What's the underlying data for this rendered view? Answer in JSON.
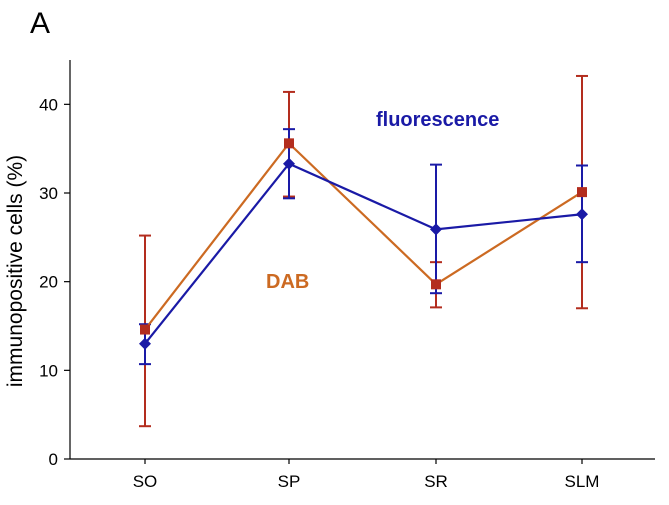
{
  "panel_label": "A",
  "chart_data": {
    "type": "line",
    "title": "",
    "xlabel": "",
    "ylabel": "immunopositive cells (%)",
    "categories": [
      "SO",
      "SP",
      "SR",
      "SLM"
    ],
    "ylim": [
      0,
      45
    ],
    "yticks": [
      0,
      10,
      20,
      30,
      40
    ],
    "grid": false,
    "legend": "inline labels",
    "series": [
      {
        "name": "fluorescence",
        "color": "#1a1aa6",
        "marker": "diamond",
        "values": [
          13.0,
          33.3,
          25.9,
          27.6
        ],
        "error_low": [
          10.7,
          29.4,
          18.7,
          22.2
        ],
        "error_high": [
          15.2,
          37.2,
          33.2,
          33.1
        ]
      },
      {
        "name": "DAB",
        "color": "#cc6a22",
        "error_color": "#b32d1e",
        "marker": "square",
        "values": [
          14.6,
          35.6,
          19.7,
          30.1
        ],
        "error_low": [
          3.7,
          29.6,
          17.1,
          17.0
        ],
        "error_high": [
          25.2,
          41.4,
          22.2,
          43.2
        ]
      }
    ]
  }
}
